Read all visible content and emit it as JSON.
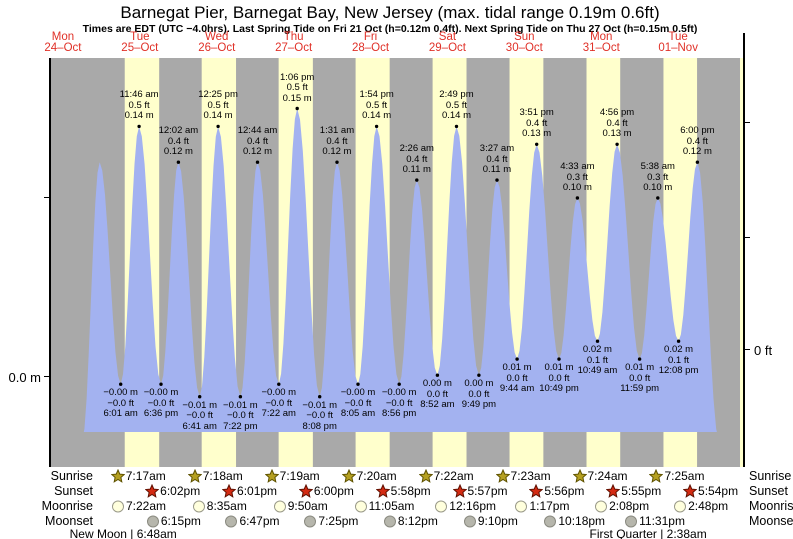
{
  "title": "Barnegat Pier, Barnegat Bay, New Jersey (max. tidal range 0.19m 0.6ft)",
  "subtitle": "Times are EDT (UTC −4.0hrs). Last Spring Tide on Fri 21 Oct (h=0.12m 0.4ft). Next Spring Tide on Thu 27 Oct (h=0.15m 0.5ft)",
  "axes": {
    "left_label": "0.0 m",
    "right_label": "0 ft"
  },
  "days": [
    {
      "name": "Mon",
      "date": "24–Oct"
    },
    {
      "name": "Tue",
      "date": "25–Oct"
    },
    {
      "name": "Wed",
      "date": "26–Oct"
    },
    {
      "name": "Thu",
      "date": "27–Oct"
    },
    {
      "name": "Fri",
      "date": "28–Oct"
    },
    {
      "name": "Sat",
      "date": "29–Oct"
    },
    {
      "name": "Sun",
      "date": "30–Oct"
    },
    {
      "name": "Mon",
      "date": "31–Oct"
    },
    {
      "name": "Tue",
      "date": "01–Nov"
    }
  ],
  "chart_data": {
    "type": "area",
    "series_name": "Tide height",
    "title": "Barnegat Pier, Barnegat Bay, New Jersey (max. tidal range 0.19m 0.6ft)",
    "ylabel_left": "0.0 m",
    "ylabel_right": "0 ft",
    "legend": "yellow bands = daylight, gray = night, blue area = tide height",
    "high_tides": [
      {
        "day_index": 1,
        "time": "11:46 am",
        "height_ft": "0.5 ft",
        "height_m": "0.14 m",
        "v": 0.14
      },
      {
        "day_index": 2,
        "time": "12:02 am",
        "height_ft": "0.4 ft",
        "height_m": "0.12 m",
        "v": 0.12
      },
      {
        "day_index": 2,
        "time": "12:25 pm",
        "height_ft": "0.5 ft",
        "height_m": "0.14 m",
        "v": 0.14
      },
      {
        "day_index": 3,
        "time": "12:44 am",
        "height_ft": "0.4 ft",
        "height_m": "0.12 m",
        "v": 0.12
      },
      {
        "day_index": 3,
        "time": "1:06 pm",
        "height_ft": "0.5 ft",
        "height_m": "0.15 m",
        "v": 0.15
      },
      {
        "day_index": 4,
        "time": "1:31 am",
        "height_ft": "0.4 ft",
        "height_m": "0.12 m",
        "v": 0.12
      },
      {
        "day_index": 4,
        "time": "1:54 pm",
        "height_ft": "0.5 ft",
        "height_m": "0.14 m",
        "v": 0.14
      },
      {
        "day_index": 5,
        "time": "2:26 am",
        "height_ft": "0.4 ft",
        "height_m": "0.11 m",
        "v": 0.11
      },
      {
        "day_index": 5,
        "time": "2:49 pm",
        "height_ft": "0.5 ft",
        "height_m": "0.14 m",
        "v": 0.14
      },
      {
        "day_index": 6,
        "time": "3:27 am",
        "height_ft": "0.4 ft",
        "height_m": "0.11 m",
        "v": 0.11
      },
      {
        "day_index": 6,
        "time": "3:51 pm",
        "height_ft": "0.4 ft",
        "height_m": "0.13 m",
        "v": 0.13
      },
      {
        "day_index": 7,
        "time": "4:33 am",
        "height_ft": "0.3 ft",
        "height_m": "0.10 m",
        "v": 0.1
      },
      {
        "day_index": 7,
        "time": "4:56 pm",
        "height_ft": "0.4 ft",
        "height_m": "0.13 m",
        "v": 0.13
      },
      {
        "day_index": 8,
        "time": "5:38 am",
        "height_ft": "0.3 ft",
        "height_m": "0.10 m",
        "v": 0.1
      },
      {
        "day_index": 8,
        "time": "6:00 pm",
        "height_ft": "0.4 ft",
        "height_m": "0.12 m",
        "v": 0.12
      }
    ],
    "low_tides": [
      {
        "day_index": 1,
        "time": "6:01 am",
        "height_m": "−0.00 m",
        "height_ft": "−0.0 ft",
        "v": -0.004
      },
      {
        "day_index": 1,
        "time": "6:36 pm",
        "height_m": "−0.00 m",
        "height_ft": "−0.0 ft",
        "v": -0.004
      },
      {
        "day_index": 2,
        "time": "6:41 am",
        "height_m": "−0.01 m",
        "height_ft": "−0.0 ft",
        "v": -0.011
      },
      {
        "day_index": 2,
        "time": "7:22 pm",
        "height_m": "−0.01 m",
        "height_ft": "−0.0 ft",
        "v": -0.011
      },
      {
        "day_index": 3,
        "time": "7:22 am",
        "height_m": "−0.00 m",
        "height_ft": "−0.0 ft",
        "v": -0.004
      },
      {
        "day_index": 3,
        "time": "8:08 pm",
        "height_m": "−0.01 m",
        "height_ft": "−0.0 ft",
        "v": -0.011
      },
      {
        "day_index": 4,
        "time": "8:05 am",
        "height_m": "−0.00 m",
        "height_ft": "−0.0 ft",
        "v": -0.004
      },
      {
        "day_index": 4,
        "time": "8:56 pm",
        "height_m": "−0.00 m",
        "height_ft": "−0.0 ft",
        "v": -0.004
      },
      {
        "day_index": 5,
        "time": "8:52 am",
        "height_m": "0.00 m",
        "height_ft": "0.0 ft",
        "v": 0.001
      },
      {
        "day_index": 5,
        "time": "9:49 pm",
        "height_m": "0.00 m",
        "height_ft": "0.0 ft",
        "v": 0.001
      },
      {
        "day_index": 6,
        "time": "9:44 am",
        "height_m": "0.01 m",
        "height_ft": "0.0 ft",
        "v": 0.01
      },
      {
        "day_index": 6,
        "time": "10:49 pm",
        "height_m": "0.01 m",
        "height_ft": "0.0 ft",
        "v": 0.01
      },
      {
        "day_index": 7,
        "time": "10:49 am",
        "height_m": "0.02 m",
        "height_ft": "0.1 ft",
        "v": 0.02
      },
      {
        "day_index": 7,
        "time": "11:59 pm",
        "height_m": "0.01 m",
        "height_ft": "0.0 ft",
        "v": 0.01
      },
      {
        "day_index": 8,
        "time": "12:08 pm",
        "height_m": "0.02 m",
        "height_ft": "0.1 ft",
        "v": 0.02
      }
    ]
  },
  "sun_moon": {
    "row_labels": [
      "Sunrise",
      "Sunset",
      "Moonrise",
      "Moonset"
    ],
    "sunrise": [
      {
        "day_index": 1,
        "time": "7:17am"
      },
      {
        "day_index": 2,
        "time": "7:18am"
      },
      {
        "day_index": 3,
        "time": "7:19am"
      },
      {
        "day_index": 4,
        "time": "7:20am"
      },
      {
        "day_index": 5,
        "time": "7:22am"
      },
      {
        "day_index": 6,
        "time": "7:23am"
      },
      {
        "day_index": 7,
        "time": "7:24am"
      },
      {
        "day_index": 8,
        "time": "7:25am"
      }
    ],
    "sunset": [
      {
        "day_index": 1,
        "time": "6:02pm"
      },
      {
        "day_index": 2,
        "time": "6:01pm"
      },
      {
        "day_index": 3,
        "time": "6:00pm"
      },
      {
        "day_index": 4,
        "time": "5:58pm"
      },
      {
        "day_index": 5,
        "time": "5:57pm"
      },
      {
        "day_index": 6,
        "time": "5:56pm"
      },
      {
        "day_index": 7,
        "time": "5:55pm"
      },
      {
        "day_index": 8,
        "time": "5:54pm"
      }
    ],
    "moonrise": [
      {
        "day_index": 1,
        "time": "7:22am"
      },
      {
        "day_index": 2,
        "time": "8:35am"
      },
      {
        "day_index": 3,
        "time": "9:50am"
      },
      {
        "day_index": 4,
        "time": "11:05am"
      },
      {
        "day_index": 5,
        "time": "12:16pm"
      },
      {
        "day_index": 6,
        "time": "1:17pm"
      },
      {
        "day_index": 7,
        "time": "2:08pm"
      },
      {
        "day_index": 8,
        "time": "2:48pm"
      }
    ],
    "moonset": [
      {
        "day_index": 1,
        "time": "6:15pm"
      },
      {
        "day_index": 2,
        "time": "6:47pm"
      },
      {
        "day_index": 3,
        "time": "7:25pm"
      },
      {
        "day_index": 4,
        "time": "8:12pm"
      },
      {
        "day_index": 5,
        "time": "9:10pm"
      },
      {
        "day_index": 6,
        "time": "10:18pm"
      },
      {
        "day_index": 7,
        "time": "11:31pm"
      }
    ],
    "moon_phases": [
      {
        "label": "New Moon",
        "time": "6:48am",
        "day_index": 1,
        "separator": "|"
      },
      {
        "label": "First Quarter",
        "time": "2:38am",
        "day_index": 8,
        "separator": "|"
      }
    ]
  },
  "colors": {
    "night_band": "#a9a9a9",
    "day_band": "#ffffcc",
    "water": "#a3b2f0",
    "day_label_red": "#e03128",
    "sunrise_star": "#b5a021",
    "sunrise_star_stroke": "#5e5200",
    "sunset_star": "#d42a12",
    "sunset_star_stroke": "#5e1000",
    "moonrise_fill": "#ffffdd",
    "moonrise_stroke": "#9a9a8a",
    "moonset_fill": "#b6b6ac",
    "moonset_stroke": "#8a8a80"
  }
}
